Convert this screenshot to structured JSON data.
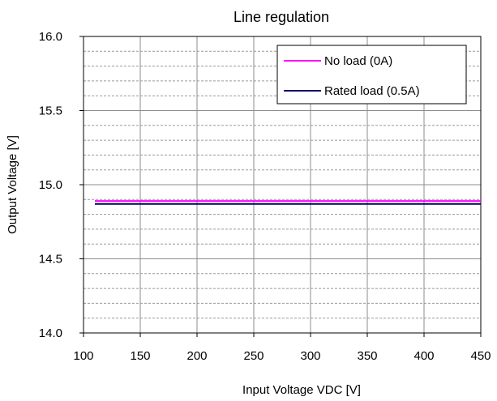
{
  "chart_data": {
    "type": "line",
    "title": "Line regulation",
    "xlabel": "Input Voltage VDC [V]",
    "ylabel": "Output Voltage [V]",
    "xlim": [
      100,
      450
    ],
    "ylim": [
      14.0,
      16.0
    ],
    "x_ticks": [
      "100",
      "150",
      "200",
      "250",
      "300",
      "350",
      "400",
      "450"
    ],
    "y_ticks": [
      "16.0",
      "15.5",
      "15.0",
      "14.5",
      "14.0"
    ],
    "grid": true,
    "legend_position": "top-right",
    "series": [
      {
        "name": "No load (0A)",
        "color": "#ff00ff",
        "x": [
          110,
          150,
          200,
          250,
          300,
          350,
          400,
          450
        ],
        "y": [
          14.89,
          14.89,
          14.89,
          14.89,
          14.89,
          14.89,
          14.89,
          14.89
        ]
      },
      {
        "name": "Rated load (0.5A)",
        "color": "#000066",
        "x": [
          110,
          150,
          200,
          250,
          300,
          350,
          400,
          450
        ],
        "y": [
          14.87,
          14.87,
          14.87,
          14.87,
          14.87,
          14.87,
          14.87,
          14.87
        ]
      }
    ]
  }
}
